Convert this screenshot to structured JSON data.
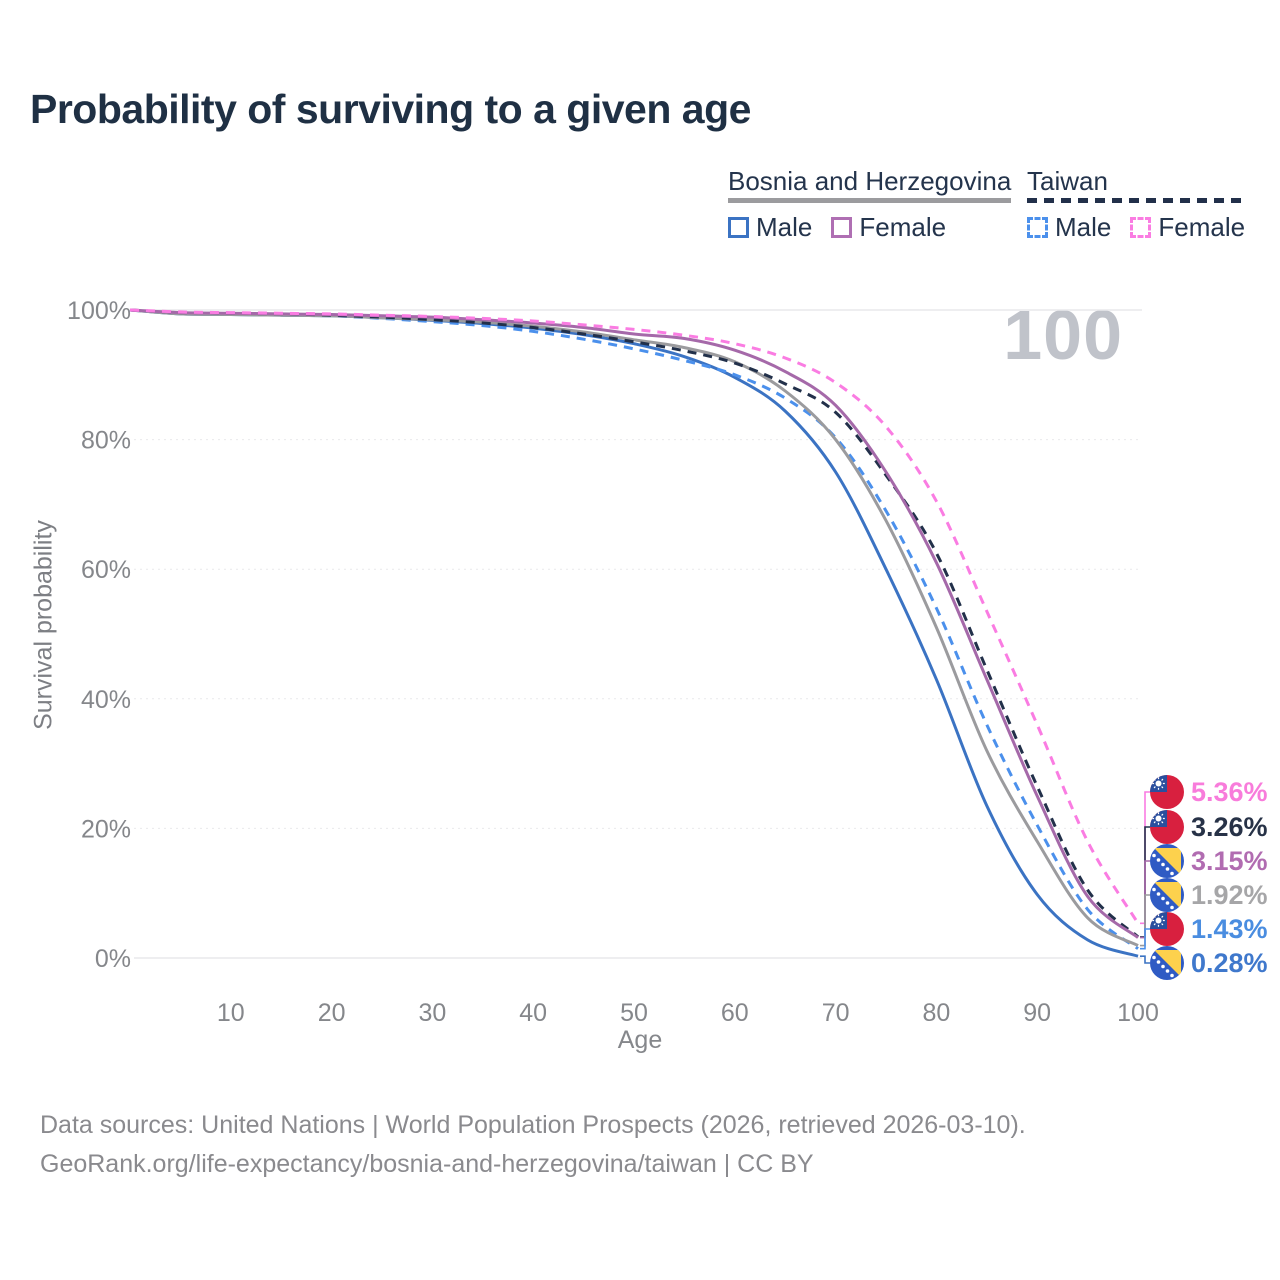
{
  "title": "Probability of surviving to a given age",
  "watermark_age_label": "100",
  "legend": {
    "groups": [
      {
        "label": "Bosnia and Herzegovina",
        "line_style": "solid",
        "line_color": "#9b9b9e",
        "items": [
          {
            "label": "Male",
            "color": "#3b73c3",
            "style": "solid"
          },
          {
            "label": "Female",
            "color": "#af6fb3",
            "style": "solid"
          }
        ]
      },
      {
        "label": "Taiwan",
        "line_style": "dashed",
        "line_color": "#22304a",
        "items": [
          {
            "label": "Male",
            "color": "#4b90ec",
            "style": "dashed"
          },
          {
            "label": "Female",
            "color": "#fa7ce2",
            "style": "dashed"
          }
        ]
      }
    ]
  },
  "x_axis": {
    "title": "Age",
    "ticks": [
      10,
      20,
      30,
      40,
      50,
      60,
      70,
      80,
      90,
      100
    ],
    "range": [
      0,
      100
    ]
  },
  "y_axis": {
    "title": "Survival probability",
    "ticks": [
      "0%",
      "20%",
      "40%",
      "60%",
      "80%",
      "100%"
    ],
    "range": [
      0,
      100
    ]
  },
  "chart_data": {
    "type": "line",
    "title": "Probability of surviving to a given age",
    "xlabel": "Age",
    "ylabel": "Survival probability",
    "xlim": [
      0,
      100
    ],
    "ylim": [
      0,
      100
    ],
    "grid": "horizontal",
    "legend_position": "top-right",
    "x": [
      0,
      5,
      10,
      15,
      20,
      25,
      30,
      35,
      40,
      45,
      50,
      55,
      60,
      65,
      70,
      75,
      80,
      85,
      90,
      95,
      100
    ],
    "series": [
      {
        "name": "Bosnia and Herzegovina Male",
        "color": "#3b73c3",
        "dash": "solid",
        "values": [
          100,
          99.4,
          99.3,
          99.2,
          99.1,
          98.8,
          98.4,
          97.9,
          97.2,
          96.2,
          94.8,
          92.8,
          89.6,
          84.4,
          75.0,
          60.0,
          43.0,
          23.5,
          9.8,
          2.8,
          0.28
        ]
      },
      {
        "name": "Bosnia and Herzegovina Female",
        "color": "#a569a9",
        "dash": "solid",
        "values": [
          100,
          99.6,
          99.5,
          99.4,
          99.3,
          99.1,
          98.9,
          98.5,
          98.0,
          97.3,
          96.3,
          95.6,
          93.8,
          90.5,
          85.3,
          75.0,
          61.0,
          43.0,
          25.0,
          9.5,
          3.15
        ]
      },
      {
        "name": "Bosnia and Herzegovina",
        "color": "#9b9b9e",
        "dash": "solid",
        "values": [
          100,
          99.4,
          99.3,
          99.2,
          99.1,
          98.8,
          98.5,
          98.1,
          97.5,
          96.6,
          95.4,
          94.2,
          92.0,
          87.5,
          80.0,
          67.5,
          51.0,
          32.0,
          18.0,
          6.2,
          1.92
        ]
      },
      {
        "name": "Taiwan Male",
        "color": "#4b90ec",
        "dash": "dashed",
        "values": [
          100,
          99.5,
          99.4,
          99.3,
          99.1,
          98.7,
          98.2,
          97.6,
          96.7,
          95.5,
          94.0,
          92.2,
          90.0,
          86.4,
          80.3,
          69.0,
          54.0,
          36.0,
          20.5,
          7.5,
          1.43
        ]
      },
      {
        "name": "Taiwan Female",
        "color": "#fa7ce2",
        "dash": "dashed",
        "values": [
          100,
          99.7,
          99.6,
          99.5,
          99.4,
          99.2,
          99.0,
          98.7,
          98.3,
          97.7,
          97.0,
          96.1,
          94.8,
          92.6,
          88.8,
          82.0,
          70.5,
          53.5,
          36.0,
          18.0,
          5.36
        ]
      },
      {
        "name": "Taiwan",
        "color": "#22304a",
        "dash": "dashed",
        "values": [
          100,
          99.6,
          99.5,
          99.4,
          99.2,
          98.9,
          98.5,
          98.0,
          97.3,
          96.3,
          95.1,
          93.7,
          91.8,
          88.6,
          84.2,
          74.5,
          62.5,
          44.5,
          26.5,
          10.5,
          3.26
        ]
      }
    ]
  },
  "end_labels": [
    {
      "series": "Taiwan Female",
      "flag": "taiwan",
      "value": 5.36,
      "text": "5.36%",
      "color": "#f87cdb",
      "line_color": "#fa7ce2"
    },
    {
      "series": "Taiwan",
      "flag": "taiwan",
      "value": 3.26,
      "text": "3.26%",
      "color": "#273247",
      "line_color": "#22304a"
    },
    {
      "series": "Bosnia and Herzegovina Female",
      "flag": "bosnia",
      "value": 3.15,
      "text": "3.15%",
      "color": "#b16cb1",
      "line_color": "#a569a9"
    },
    {
      "series": "Bosnia and Herzegovina",
      "flag": "bosnia",
      "value": 1.92,
      "text": "1.92%",
      "color": "#a6a6a8",
      "line_color": "#9b9b9e"
    },
    {
      "series": "Taiwan Male",
      "flag": "taiwan",
      "value": 1.43,
      "text": "1.43%",
      "color": "#4a8de0",
      "line_color": "#4b90ec"
    },
    {
      "series": "Bosnia and Herzegovina Male",
      "flag": "bosnia",
      "value": 0.28,
      "text": "0.28%",
      "color": "#3f78cc",
      "line_color": "#3b73c3"
    }
  ],
  "footer": {
    "line1": "Data sources: United Nations | World Population Prospects (2026, retrieved 2026-03-10).",
    "line2": "GeoRank.org/life-expectancy/bosnia-and-herzegovina/taiwan | CC BY"
  }
}
